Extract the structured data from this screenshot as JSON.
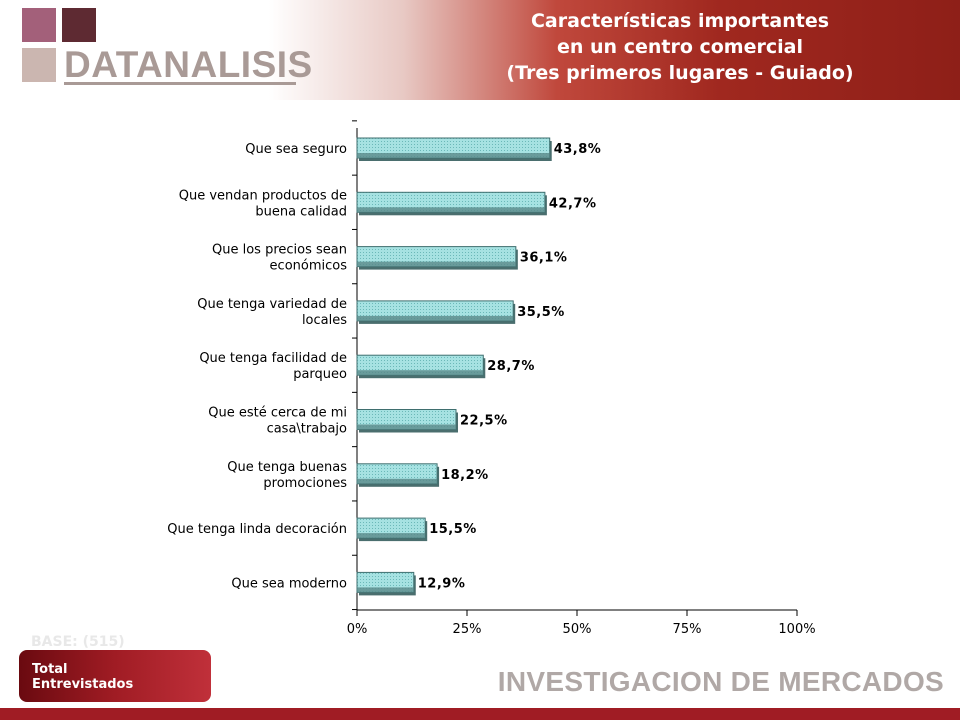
{
  "brand": {
    "name": "DATANALISIS",
    "colors": [
      "#a3607a",
      "#5e2a32",
      "#cbb6b0",
      "#d7cfcd"
    ]
  },
  "title": {
    "line1": "Características importantes",
    "line2": "en un centro comercial",
    "line3": "(Tres primeros lugares - Guiado)"
  },
  "base": {
    "label": "BASE: (515)",
    "line1": "Total",
    "line2": "Entrevistados"
  },
  "footer": {
    "text": "INVESTIGACION DE MERCADOS"
  },
  "chart_data": {
    "type": "bar",
    "orientation": "horizontal",
    "categories": [
      [
        "Que sea seguro"
      ],
      [
        "Que vendan productos de",
        "buena calidad"
      ],
      [
        "Que los precios sean",
        "económicos"
      ],
      [
        "Que tenga variedad de",
        "locales"
      ],
      [
        "Que tenga facilidad de",
        "parqueo"
      ],
      [
        "Que esté cerca de mi",
        "casa\\trabajo"
      ],
      [
        "Que tenga buenas",
        "promociones"
      ],
      [
        "Que tenga linda decoración"
      ],
      [
        "Que sea moderno"
      ]
    ],
    "values": [
      43.8,
      42.7,
      36.1,
      35.5,
      28.7,
      22.5,
      18.2,
      15.5,
      12.9
    ],
    "value_labels": [
      "43,8%",
      "42,7%",
      "36,1%",
      "35,5%",
      "28,7%",
      "22,5%",
      "18,2%",
      "15,5%",
      "12,9%"
    ],
    "xlim": [
      0,
      100
    ],
    "xticks": [
      0,
      25,
      50,
      75,
      100
    ],
    "xtick_labels": [
      "0%",
      "25%",
      "50%",
      "75%",
      "100%"
    ],
    "bar_color": "#8fd6d6",
    "grid": false,
    "legend": false
  }
}
